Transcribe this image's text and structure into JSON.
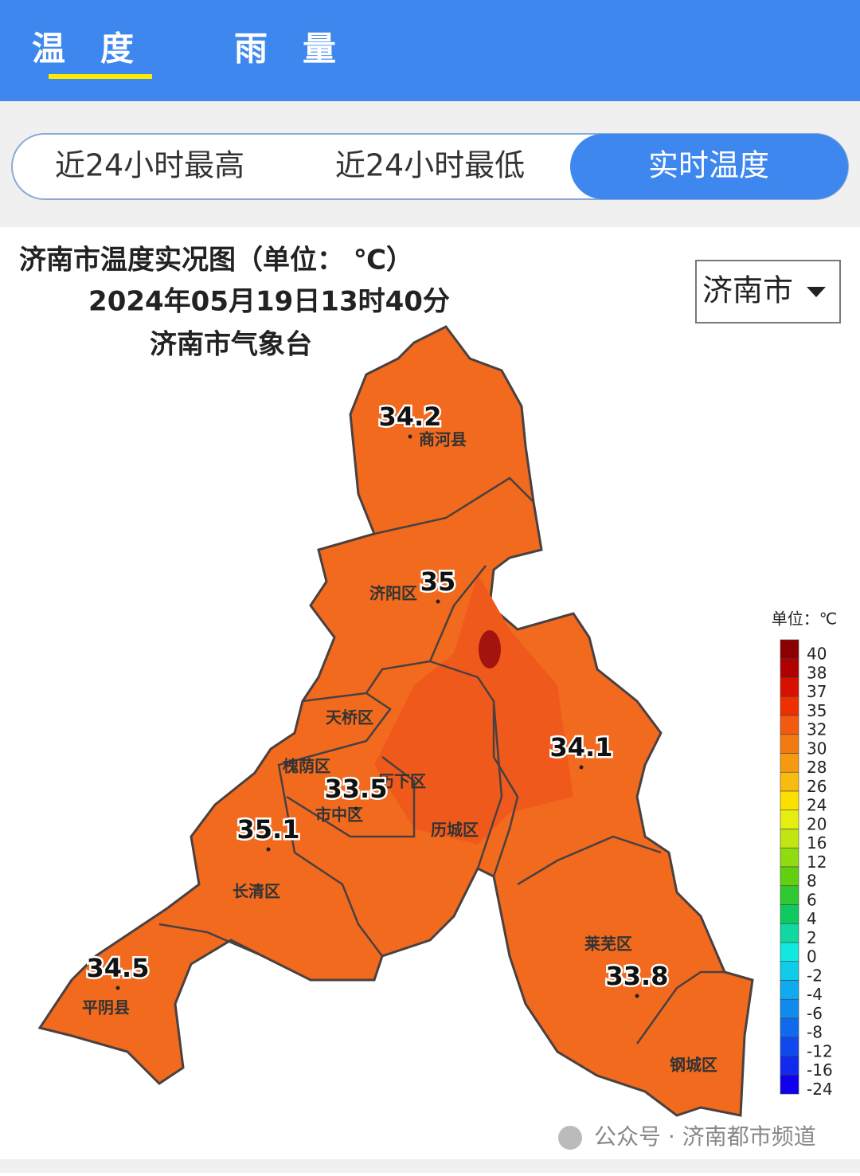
{
  "tabs": [
    "温度",
    "雨量"
  ],
  "subtabs": [
    "近24小时最高",
    "近24小时最低",
    "实时温度"
  ],
  "map": {
    "title": "济南市温度实况图（单位：  ℃）",
    "time": "2024年05月19日13时40分",
    "source": "济南市气象台",
    "region_select": "济南市",
    "readings": [
      34.2,
      35,
      34.1,
      33.5,
      35.1,
      34.5,
      33.8
    ],
    "districts": [
      "商河县",
      "济阳区",
      "天桥区",
      "槐荫区",
      "历下区",
      "市中区",
      "历城区",
      "长清区",
      "平阴县",
      "莱芜区",
      "钢城区"
    ],
    "legend": {
      "unit": "单位：℃",
      "ticks": [
        40,
        38,
        37,
        35,
        32,
        30,
        28,
        26,
        24,
        20,
        16,
        12,
        8,
        6,
        4,
        2,
        0,
        -2,
        -4,
        -6,
        -8,
        -12,
        -16,
        -24
      ]
    }
  },
  "watermark": "公众号 · 济南都市频道"
}
